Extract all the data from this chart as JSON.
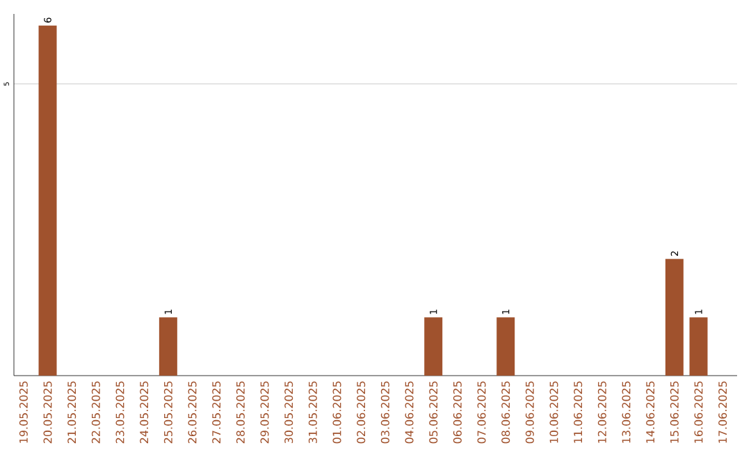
{
  "chart_data": {
    "type": "bar",
    "categories": [
      "19.05.2025",
      "20.05.2025",
      "21.05.2025",
      "22.05.2025",
      "23.05.2025",
      "24.05.2025",
      "25.05.2025",
      "26.05.2025",
      "27.05.2025",
      "28.05.2025",
      "29.05.2025",
      "30.05.2025",
      "31.05.2025",
      "01.06.2025",
      "02.06.2025",
      "03.06.2025",
      "04.06.2025",
      "05.06.2025",
      "06.06.2025",
      "07.06.2025",
      "08.06.2025",
      "09.06.2025",
      "10.06.2025",
      "11.06.2025",
      "12.06.2025",
      "13.06.2025",
      "14.06.2025",
      "15.06.2025",
      "16.06.2025",
      "17.06.2025"
    ],
    "values": [
      0,
      6,
      0,
      0,
      0,
      0,
      1,
      0,
      0,
      0,
      0,
      0,
      0,
      0,
      0,
      0,
      0,
      1,
      0,
      0,
      1,
      0,
      0,
      0,
      0,
      0,
      0,
      2,
      1,
      0
    ],
    "value_labels": [
      null,
      "6",
      null,
      null,
      null,
      null,
      "1",
      null,
      null,
      null,
      null,
      null,
      null,
      null,
      null,
      null,
      null,
      "1",
      null,
      null,
      "1",
      null,
      null,
      null,
      null,
      null,
      null,
      "2",
      "1",
      null
    ],
    "color": "#a0522d",
    "ylim": [
      0,
      6.2
    ],
    "yticks": [
      5
    ],
    "grid": "y"
  }
}
